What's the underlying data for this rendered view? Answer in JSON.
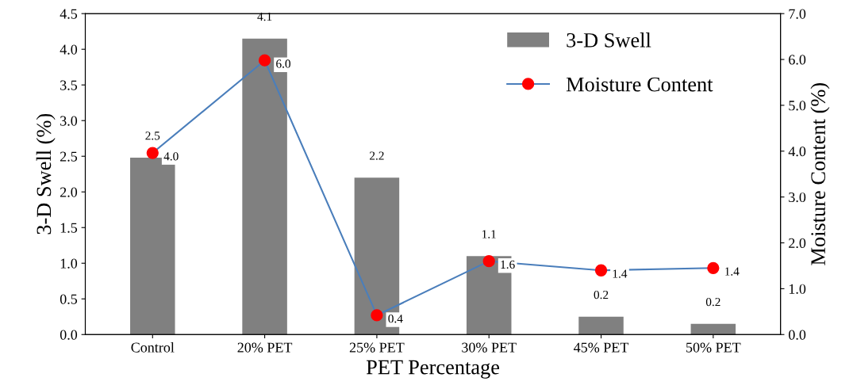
{
  "chart_data": {
    "type": "bar",
    "xlabel": "PET Percentage",
    "ylabel": "3-D Swell (%)",
    "y2label": "Moisture Content (%)",
    "categories": [
      "Control",
      "20% PET",
      "25% PET",
      "30% PET",
      "45% PET",
      "50% PET"
    ],
    "series": [
      {
        "name": "3-D Swell",
        "color": "#808080",
        "values": [
          2.48,
          4.15,
          2.2,
          1.1,
          0.25,
          0.15
        ],
        "value_labels": [
          "2.5",
          "4.1",
          "2.2",
          "1.1",
          "0.2",
          "0.2"
        ]
      },
      {
        "name": "Moisture Content",
        "type": "line",
        "axis": "y2",
        "color": "#ff0000",
        "marker": "circle",
        "values": [
          3.96,
          5.98,
          0.42,
          1.6,
          1.4,
          1.45
        ],
        "value_labels": [
          "4.0",
          "6.0",
          "0.4",
          "1.6",
          "1.4",
          "1.4"
        ]
      }
    ],
    "ylim": [
      0,
      4.5
    ],
    "yticks": [
      {
        "value": 0,
        "label": "0.0"
      },
      {
        "value": 0.5,
        "label": "0.5"
      },
      {
        "value": 1,
        "label": "1.0"
      },
      {
        "value": 1.5,
        "label": "1.5"
      },
      {
        "value": 2,
        "label": "2.0"
      },
      {
        "value": 2.5,
        "label": "2.5"
      },
      {
        "value": 3,
        "label": "3.0"
      },
      {
        "value": 3.5,
        "label": "3.5"
      },
      {
        "value": 4,
        "label": "4.0"
      },
      {
        "value": 4.5,
        "label": "4.5"
      }
    ],
    "y2lim": [
      0,
      7
    ],
    "y2ticks": [
      {
        "value": 0,
        "label": "0.0"
      },
      {
        "value": 1,
        "label": "1.0"
      },
      {
        "value": 2,
        "label": "2.0"
      },
      {
        "value": 3,
        "label": "3.0"
      },
      {
        "value": 4,
        "label": "4.0"
      },
      {
        "value": 5,
        "label": "5.0"
      },
      {
        "value": 6,
        "label": "6.0"
      },
      {
        "value": 7,
        "label": "7.0"
      }
    ],
    "grid": false,
    "legend": "top right"
  }
}
